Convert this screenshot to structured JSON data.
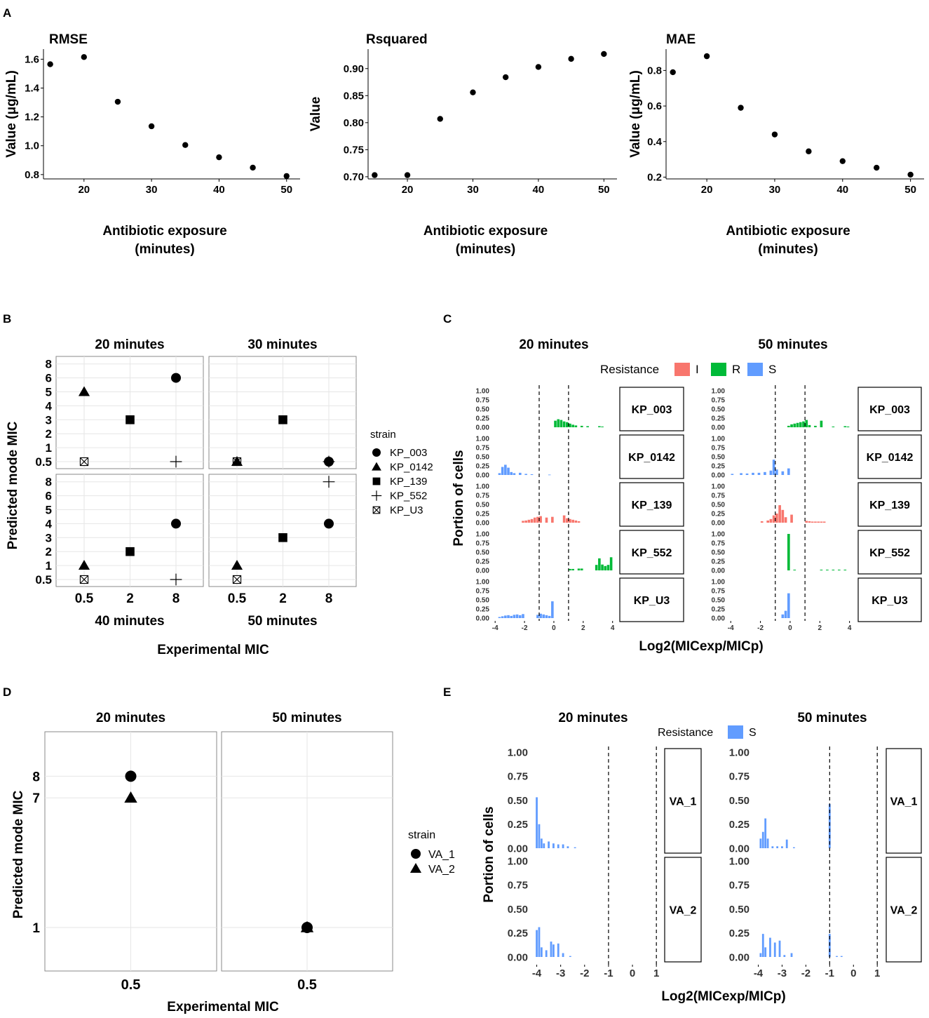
{
  "panel_labels": {
    "A": "A",
    "B": "B",
    "C": "C",
    "D": "D",
    "E": "E"
  },
  "colors": {
    "I": "#f8766d",
    "R": "#00ba38",
    "S": "#619cff",
    "grid": "#e6e6e6",
    "ink": "#000000"
  },
  "chart_data": [
    {
      "id": "A1",
      "type": "scatter",
      "title": "RMSE",
      "xlabel": [
        "Antibiotic exposure",
        "(minutes)"
      ],
      "ylabel": "Value (μg/mL)",
      "x": [
        15,
        20,
        25,
        30,
        35,
        40,
        45,
        50
      ],
      "y": [
        1.565,
        1.615,
        1.305,
        1.135,
        1.005,
        0.92,
        0.848,
        0.79
      ],
      "xticks": [
        20,
        30,
        40,
        50
      ],
      "yticks": [
        "0.8",
        "1.0",
        "1.2",
        "1.4",
        "1.6"
      ],
      "xlim": [
        14,
        52
      ],
      "ylim": [
        0.77,
        1.67
      ]
    },
    {
      "id": "A2",
      "type": "scatter",
      "title": "Rsquared",
      "xlabel": [
        "Antibiotic exposure",
        "(minutes)"
      ],
      "ylabel": "Value",
      "x": [
        15,
        20,
        25,
        30,
        35,
        40,
        45,
        50
      ],
      "y": [
        0.703,
        0.703,
        0.807,
        0.856,
        0.884,
        0.903,
        0.918,
        0.927
      ],
      "xticks": [
        20,
        30,
        40,
        50
      ],
      "yticks": [
        "0.70",
        "0.75",
        "0.80",
        "0.85",
        "0.90"
      ],
      "xlim": [
        14,
        52
      ],
      "ylim": [
        0.696,
        0.936
      ]
    },
    {
      "id": "A3",
      "type": "scatter",
      "title": "MAE",
      "xlabel": [
        "Antibiotic exposure",
        "(minutes)"
      ],
      "ylabel": "Value (μg/mL)",
      "x": [
        15,
        20,
        25,
        30,
        35,
        40,
        45,
        50
      ],
      "y": [
        0.79,
        0.88,
        0.59,
        0.44,
        0.345,
        0.29,
        0.253,
        0.214
      ],
      "xticks": [
        20,
        30,
        40,
        50
      ],
      "yticks": [
        "0.2",
        "0.4",
        "0.6",
        "0.8"
      ],
      "xlim": [
        14,
        52
      ],
      "ylim": [
        0.19,
        0.92
      ]
    },
    {
      "id": "B",
      "type": "scatter",
      "facet_titles": [
        "20 minutes",
        "30 minutes",
        "40 minutes",
        "50 minutes"
      ],
      "xlabel": "Experimental MIC",
      "ylabel": "Predicted mode MIC",
      "xticks": [
        "0.5",
        "2",
        "8"
      ],
      "yticks": [
        "0.5",
        "1",
        "2",
        "3",
        "4",
        "5",
        "6",
        "8"
      ],
      "legend_title": "strain",
      "strains": [
        "KP_003",
        "KP_0142",
        "KP_139",
        "KP_552",
        "KP_U3"
      ],
      "facets": [
        {
          "points": [
            [
              "KP_003",
              "8",
              "6"
            ],
            [
              "KP_0142",
              "0.5",
              "5"
            ],
            [
              "KP_139",
              "2",
              "3"
            ],
            [
              "KP_552",
              "8",
              "0.5"
            ],
            [
              "KP_U3",
              "0.5",
              "0.5"
            ]
          ]
        },
        {
          "points": [
            [
              "KP_003",
              "8",
              "0.5"
            ],
            [
              "KP_0142",
              "0.5",
              "0.5"
            ],
            [
              "KP_139",
              "2",
              "3"
            ],
            [
              "KP_552",
              "8",
              "0.5"
            ],
            [
              "KP_U3",
              "0.5",
              "0.5"
            ]
          ]
        },
        {
          "points": [
            [
              "KP_003",
              "8",
              "4"
            ],
            [
              "KP_0142",
              "0.5",
              "1"
            ],
            [
              "KP_139",
              "2",
              "2"
            ],
            [
              "KP_552",
              "8",
              "0.5"
            ],
            [
              "KP_U3",
              "0.5",
              "0.5"
            ]
          ]
        },
        {
          "points": [
            [
              "KP_003",
              "8",
              "4"
            ],
            [
              "KP_0142",
              "0.5",
              "1"
            ],
            [
              "KP_139",
              "2",
              "3"
            ],
            [
              "KP_552",
              "8",
              "8"
            ],
            [
              "KP_U3",
              "0.5",
              "0.5"
            ]
          ]
        }
      ]
    },
    {
      "id": "C",
      "type": "bar",
      "facet_titles": [
        "20 minutes",
        "50 minutes"
      ],
      "xlabel": "Log2(MICexp/MICp)",
      "ylabel": "Portion of cells",
      "legend_title": "Resistance",
      "legend": [
        "I",
        "R",
        "S"
      ],
      "xticks": [
        "-4",
        "-2",
        "0",
        "2",
        "4"
      ],
      "xlim": [
        -4.2,
        4.3
      ],
      "yticks": [
        "0.00",
        "0.25",
        "0.50",
        "0.75",
        "1.00"
      ],
      "vlines": [
        -1,
        1
      ],
      "rows": [
        {
          "strain": "KP_003",
          "class": "R",
          "bars20": [
            [
              0.1,
              0.18
            ],
            [
              0.3,
              0.22
            ],
            [
              0.5,
              0.2
            ],
            [
              0.7,
              0.16
            ],
            [
              0.9,
              0.14
            ],
            [
              1.1,
              0.1
            ],
            [
              1.3,
              0.07
            ],
            [
              1.5,
              0.05
            ],
            [
              1.9,
              0.04
            ],
            [
              2.3,
              0.03
            ],
            [
              3.1,
              0.03
            ],
            [
              3.3,
              0.02
            ]
          ],
          "bars50": [
            [
              -0.1,
              0.04
            ],
            [
              0.1,
              0.08
            ],
            [
              0.3,
              0.1
            ],
            [
              0.5,
              0.12
            ],
            [
              0.7,
              0.14
            ],
            [
              0.9,
              0.16
            ],
            [
              1.1,
              0.2
            ],
            [
              1.3,
              0.06
            ],
            [
              1.7,
              0.04
            ],
            [
              2.1,
              0.18
            ],
            [
              2.9,
              0.02
            ],
            [
              3.7,
              0.03
            ],
            [
              3.9,
              0.02
            ]
          ]
        },
        {
          "strain": "KP_0142",
          "class": "S",
          "bars20": [
            [
              -3.7,
              0.05
            ],
            [
              -3.5,
              0.22
            ],
            [
              -3.3,
              0.28
            ],
            [
              -3.1,
              0.2
            ],
            [
              -2.9,
              0.08
            ],
            [
              -2.7,
              0.05
            ],
            [
              -2.3,
              0.06
            ],
            [
              -1.9,
              0.03
            ],
            [
              -1.5,
              0.02
            ],
            [
              -0.3,
              0.01
            ]
          ],
          "bars50": [
            [
              -3.9,
              0.03
            ],
            [
              -3.3,
              0.05
            ],
            [
              -2.9,
              0.04
            ],
            [
              -2.5,
              0.06
            ],
            [
              -2.1,
              0.06
            ],
            [
              -1.7,
              0.08
            ],
            [
              -1.3,
              0.12
            ],
            [
              -1.1,
              0.42
            ],
            [
              -0.9,
              0.15
            ],
            [
              -0.5,
              0.1
            ],
            [
              -0.1,
              0.18
            ]
          ]
        },
        {
          "strain": "KP_139",
          "class": "I",
          "bars20": [
            [
              -2.1,
              0.05
            ],
            [
              -1.9,
              0.06
            ],
            [
              -1.7,
              0.08
            ],
            [
              -1.5,
              0.1
            ],
            [
              -1.3,
              0.14
            ],
            [
              -1.1,
              0.16
            ],
            [
              -0.9,
              0.18
            ],
            [
              -0.5,
              0.14
            ],
            [
              -0.1,
              0.16
            ],
            [
              0.7,
              0.2
            ],
            [
              0.9,
              0.12
            ],
            [
              1.1,
              0.1
            ],
            [
              1.3,
              0.08
            ],
            [
              1.5,
              0.06
            ],
            [
              1.7,
              0.04
            ]
          ],
          "bars50": [
            [
              -1.9,
              0.04
            ],
            [
              -1.5,
              0.06
            ],
            [
              -1.3,
              0.1
            ],
            [
              -1.1,
              0.2
            ],
            [
              -0.9,
              0.25
            ],
            [
              -0.7,
              0.48
            ],
            [
              -0.5,
              0.35
            ],
            [
              -0.3,
              0.15
            ],
            [
              0.1,
              0.22
            ],
            [
              1.1,
              0.05
            ],
            [
              1.3,
              0.04
            ],
            [
              1.5,
              0.03
            ],
            [
              1.7,
              0.03
            ],
            [
              1.9,
              0.03
            ],
            [
              2.1,
              0.03
            ],
            [
              2.3,
              0.03
            ]
          ]
        },
        {
          "strain": "KP_552",
          "class": "R",
          "bars20": [
            [
              1.1,
              0.04
            ],
            [
              1.3,
              0.04
            ],
            [
              1.7,
              0.05
            ],
            [
              1.9,
              0.05
            ],
            [
              2.9,
              0.15
            ],
            [
              3.1,
              0.33
            ],
            [
              3.3,
              0.16
            ],
            [
              3.5,
              0.12
            ],
            [
              3.7,
              0.15
            ],
            [
              3.9,
              0.36
            ]
          ],
          "bars50": [
            [
              -0.1,
              1.0
            ],
            [
              0.3,
              0.02
            ],
            [
              2.1,
              0.02
            ],
            [
              2.5,
              0.02
            ],
            [
              2.9,
              0.02
            ],
            [
              3.3,
              0.02
            ],
            [
              3.7,
              0.02
            ]
          ]
        },
        {
          "strain": "KP_U3",
          "class": "S",
          "bars20": [
            [
              -3.7,
              0.03
            ],
            [
              -3.5,
              0.05
            ],
            [
              -3.3,
              0.07
            ],
            [
              -3.1,
              0.08
            ],
            [
              -2.9,
              0.06
            ],
            [
              -2.7,
              0.09
            ],
            [
              -2.5,
              0.1
            ],
            [
              -2.3,
              0.08
            ],
            [
              -2.1,
              0.11
            ],
            [
              -1.1,
              0.09
            ],
            [
              -0.9,
              0.12
            ],
            [
              -0.7,
              0.1
            ],
            [
              -0.5,
              0.08
            ],
            [
              -0.3,
              0.06
            ],
            [
              -0.1,
              0.46
            ]
          ],
          "bars50": [
            [
              -0.5,
              0.1
            ],
            [
              -0.3,
              0.2
            ],
            [
              -0.1,
              0.68
            ]
          ]
        }
      ]
    },
    {
      "id": "D",
      "type": "scatter",
      "facet_titles": [
        "20 minutes",
        "50 minutes"
      ],
      "xlabel": "Experimental MIC",
      "ylabel": "Predicted mode MIC",
      "xticks": [
        "0.5"
      ],
      "yticks": [
        "1",
        "7",
        "8"
      ],
      "legend_title": "strain",
      "strains": [
        "VA_1",
        "VA_2"
      ],
      "facets": [
        {
          "points": [
            [
              "VA_1",
              "0.5",
              "8"
            ],
            [
              "VA_2",
              "0.5",
              "7"
            ]
          ]
        },
        {
          "points": [
            [
              "VA_1",
              "0.5",
              "1"
            ],
            [
              "VA_2",
              "0.5",
              "1"
            ]
          ]
        }
      ]
    },
    {
      "id": "E",
      "type": "bar",
      "facet_titles": [
        "20 minutes",
        "50 minutes"
      ],
      "xlabel": "Log2(MICexp/MICp)",
      "ylabel": "Portion of cells",
      "legend_title": "Resistance",
      "legend": [
        "S"
      ],
      "xticks": [
        "-4",
        "-3",
        "-2",
        "-1",
        "0",
        "1"
      ],
      "xlim": [
        -4.25,
        1.2
      ],
      "yticks": [
        "0.00",
        "0.25",
        "0.50",
        "0.75",
        "1.00"
      ],
      "vlines": [
        -1,
        1
      ],
      "rows": [
        {
          "strain": "VA_1",
          "class": "S",
          "bars20": [
            [
              -4.0,
              0.53
            ],
            [
              -3.9,
              0.25
            ],
            [
              -3.8,
              0.1
            ],
            [
              -3.7,
              0.05
            ],
            [
              -3.5,
              0.07
            ],
            [
              -3.3,
              0.05
            ],
            [
              -3.1,
              0.04
            ],
            [
              -2.9,
              0.04
            ],
            [
              -2.7,
              0.02
            ],
            [
              -2.4,
              0.01
            ]
          ],
          "bars50": [
            [
              -3.9,
              0.1
            ],
            [
              -3.8,
              0.17
            ],
            [
              -3.7,
              0.31
            ],
            [
              -3.6,
              0.1
            ],
            [
              -3.4,
              0.02
            ],
            [
              -3.2,
              0.02
            ],
            [
              -3.0,
              0.02
            ],
            [
              -2.8,
              0.09
            ],
            [
              -2.5,
              0.01
            ],
            [
              -1.0,
              0.46
            ]
          ]
        },
        {
          "strain": "VA_2",
          "class": "S",
          "bars20": [
            [
              -4.0,
              0.28
            ],
            [
              -3.9,
              0.31
            ],
            [
              -3.8,
              0.1
            ],
            [
              -3.6,
              0.07
            ],
            [
              -3.4,
              0.16
            ],
            [
              -3.3,
              0.13
            ],
            [
              -3.1,
              0.14
            ],
            [
              -2.9,
              0.04
            ],
            [
              -2.6,
              0.01
            ]
          ],
          "bars50": [
            [
              -3.9,
              0.04
            ],
            [
              -3.8,
              0.24
            ],
            [
              -3.7,
              0.1
            ],
            [
              -3.5,
              0.2
            ],
            [
              -3.3,
              0.15
            ],
            [
              -3.1,
              0.17
            ],
            [
              -2.9,
              0.02
            ],
            [
              -2.6,
              0.04
            ],
            [
              -1.0,
              0.24
            ],
            [
              -0.7,
              0.01
            ],
            [
              -0.5,
              0.01
            ]
          ]
        }
      ]
    }
  ]
}
